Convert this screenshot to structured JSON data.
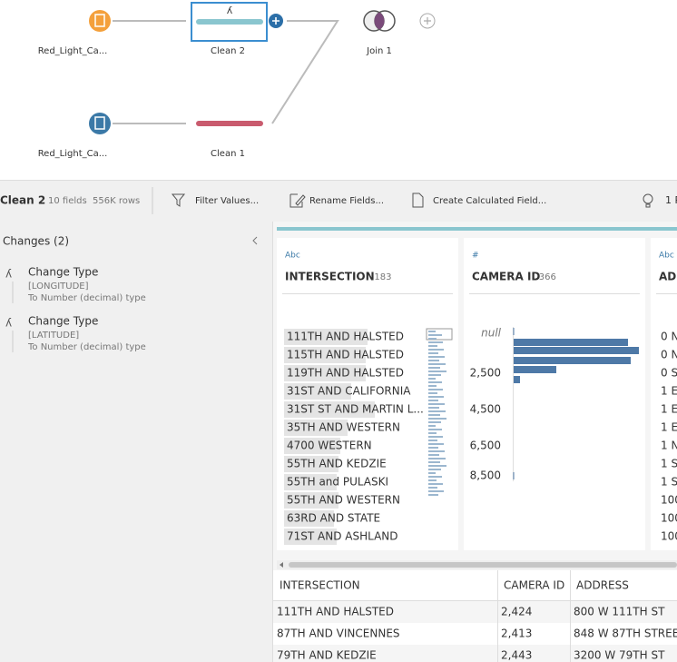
{
  "flow": {
    "nodes": [
      {
        "label": "Red_Light_Ca..."
      },
      {
        "label": "Clean 2"
      },
      {
        "label": "Join 1"
      },
      {
        "label": "Red_Light_Ca..."
      },
      {
        "label": "Clean 1"
      }
    ]
  },
  "toolbar": {
    "step": "Clean 2",
    "info": "10 fields  556K rows",
    "actions": [
      "Filter Values...",
      "Rename Fields...",
      "Create Calculated Field..."
    ],
    "recommendations": "1 R"
  },
  "changes": {
    "title": "Changes (2)",
    "items": [
      {
        "action": "Change Type",
        "field": "[LONGITUDE]",
        "detail": "To Number (decimal) type"
      },
      {
        "action": "Change Type",
        "field": "[LATITUDE]",
        "detail": "To Number (decimal) type"
      }
    ]
  },
  "profile": {
    "cards": [
      {
        "kind": "Abc",
        "name": "INTERSECTION",
        "count": "183",
        "values": [
          "111TH AND HALSTED",
          "115TH AND HALSTED",
          "119TH AND HALSTED",
          "31ST AND CALIFORNIA",
          "31ST ST AND MARTIN L...",
          "35TH AND WESTERN",
          "4700 WESTERN",
          "55TH AND KEDZIE",
          "55TH and PULASKI",
          "55TH AND WESTERN",
          "63RD AND STATE",
          "71ST AND ASHLAND"
        ]
      },
      {
        "kind": "#",
        "name": "CAMERA ID",
        "count": "366",
        "axis": [
          "null",
          "2,500",
          "4,500",
          "6,500",
          "8,500"
        ]
      },
      {
        "kind": "Abc",
        "name": "ADD",
        "values": [
          "0 N",
          "0 N",
          "0 S",
          "1 E",
          "1 E",
          "1 E",
          "1 N",
          "1 S",
          "1 S",
          "100",
          "100",
          "100"
        ]
      }
    ]
  },
  "table": {
    "header": [
      "INTERSECTION",
      "CAMERA ID",
      "ADDRESS"
    ],
    "rows": [
      [
        "111TH AND HALSTED",
        "2,424",
        "800 W 111TH ST"
      ],
      [
        "87TH AND VINCENNES",
        "2,413",
        "848 W 87TH STREET"
      ],
      [
        "79TH AND KEDZIE",
        "2,443",
        "3200 W 79TH ST"
      ]
    ]
  }
}
